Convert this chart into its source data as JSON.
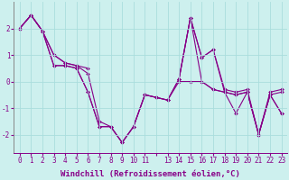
{
  "xlabel": "Windchill (Refroidissement éolien,°C)",
  "bg_color": "#cdf0ee",
  "line_color": "#880088",
  "grid_color": "#aadddd",
  "series": [
    [
      2.0,
      2.5,
      1.9,
      1.0,
      0.7,
      0.6,
      0.5,
      null,
      null,
      null,
      null,
      null,
      null,
      null,
      0.1,
      2.4,
      0.9,
      1.2,
      -0.3,
      -0.4,
      -0.3,
      -2.0,
      -0.5,
      -0.4
    ],
    [
      2.0,
      2.5,
      1.9,
      0.6,
      0.6,
      0.5,
      -0.4,
      -1.7,
      -1.7,
      -2.3,
      -1.7,
      -0.5,
      -0.6,
      -0.7,
      0.1,
      2.4,
      0.9,
      1.2,
      -0.4,
      -0.5,
      -0.4,
      -2.0,
      -0.5,
      -1.2
    ],
    [
      2.0,
      2.5,
      1.9,
      1.0,
      0.7,
      0.6,
      0.3,
      -1.5,
      -1.7,
      -2.3,
      -1.7,
      -0.5,
      -0.6,
      -0.7,
      0.1,
      2.4,
      0.0,
      -0.3,
      -0.4,
      -0.5,
      -0.4,
      -2.0,
      -0.5,
      -1.2
    ],
    [
      2.0,
      2.5,
      1.9,
      0.6,
      0.6,
      0.5,
      -0.4,
      -1.7,
      -1.7,
      -2.3,
      -1.7,
      -0.5,
      -0.6,
      -0.7,
      0.0,
      0.0,
      0.0,
      -0.3,
      -0.4,
      -1.2,
      -0.4,
      -2.0,
      -0.4,
      -0.3
    ]
  ],
  "xlim": [
    -0.5,
    23.5
  ],
  "ylim": [
    -2.7,
    3.0
  ],
  "xtick_labels": [
    "0",
    "1",
    "2",
    "3",
    "4",
    "5",
    "6",
    "7",
    "8",
    "9",
    "10",
    "11",
    "",
    "13",
    "14",
    "15",
    "16",
    "17",
    "18",
    "19",
    "20",
    "21",
    "22",
    "23"
  ],
  "xtick_pos": [
    0,
    1,
    2,
    3,
    4,
    5,
    6,
    7,
    8,
    9,
    10,
    11,
    12,
    13,
    14,
    15,
    16,
    17,
    18,
    19,
    20,
    21,
    22,
    23
  ],
  "yticks": [
    -2,
    -1,
    0,
    1,
    2
  ],
  "tick_fontsize": 5.5,
  "label_fontsize": 6.5,
  "markersize": 2.0,
  "linewidth": 0.8
}
